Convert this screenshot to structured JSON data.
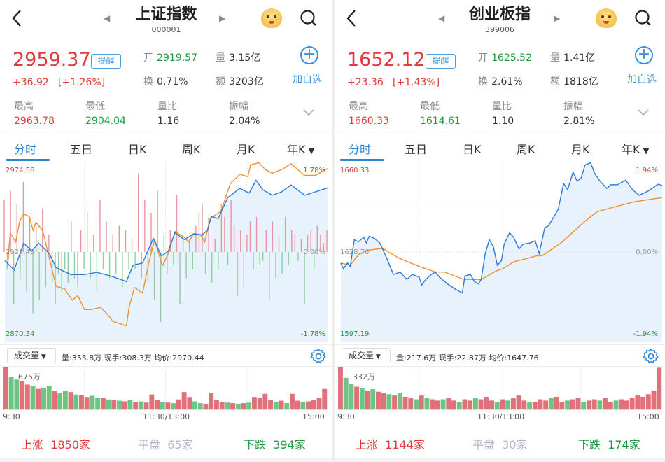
{
  "colors": {
    "up": "#e23a3a",
    "down": "#1e9a3c",
    "accent": "#2a86d8",
    "price_line": "#2f7ad6",
    "avg_line": "#f0902e",
    "fill": "#e8f2fc",
    "flat": "#b0b8c8"
  },
  "icons": {
    "back": "chevron-left-icon",
    "prev": "triangle-left-icon",
    "next": "triangle-right-icon",
    "mascot": "mascot-icon",
    "search": "search-icon",
    "add": "plus-circle-icon",
    "expand": "chevron-down-icon",
    "settings": "gear-icon",
    "dropdown": "triangle-down-icon"
  },
  "tabs": [
    "分时",
    "五日",
    "日K",
    "周K",
    "月K",
    "年K"
  ],
  "panels": [
    {
      "title": "上证指数",
      "code": "000001",
      "price": "2959.37",
      "remind": "提醒",
      "change": "+36.92",
      "change_pct": "[+1.26%]",
      "open_label": "开",
      "open": "2919.57",
      "vol_label": "量",
      "vol": "3.15亿",
      "turn_label": "换",
      "turn": "0.71%",
      "amt_label": "额",
      "amt": "3203亿",
      "add_label": "加自选",
      "stats": [
        {
          "label": "最高",
          "value": "2963.78"
        },
        {
          "label": "最低",
          "value": "2904.04"
        },
        {
          "label": "量比",
          "value": "1.16"
        },
        {
          "label": "振幅",
          "value": "2.04%"
        }
      ],
      "chart": {
        "top": "2974.56",
        "mid": "2922.45",
        "bottom": "2870.34",
        "top_pct": "1.78%",
        "mid_pct": "0.00%",
        "bottom_pct": "-1.78%"
      },
      "indicator": "成交量",
      "info": "量:355.8万  现手:308.3万  均价:2970.44",
      "vol_max": "675万",
      "times": [
        "9:30",
        "11:30/13:00",
        "15:00"
      ],
      "up": "上涨",
      "up_count": "1850家",
      "flat": "平盘",
      "flat_count": "65家",
      "down": "下跌",
      "down_count": "394家"
    },
    {
      "title": "创业板指",
      "code": "399006",
      "price": "1652.12",
      "remind": "提醒",
      "change": "+23.36",
      "change_pct": "[+1.43%]",
      "open_label": "开",
      "open": "1625.52",
      "vol_label": "量",
      "vol": "1.41亿",
      "turn_label": "换",
      "turn": "2.61%",
      "amt_label": "额",
      "amt": "1818亿",
      "add_label": "加自选",
      "stats": [
        {
          "label": "最高",
          "value": "1660.33"
        },
        {
          "label": "最低",
          "value": "1614.61"
        },
        {
          "label": "量比",
          "value": "1.10"
        },
        {
          "label": "振幅",
          "value": "2.81%"
        }
      ],
      "chart": {
        "top": "1660.33",
        "mid": "1628.76",
        "bottom": "1597.19",
        "top_pct": "1.94%",
        "mid_pct": "0.00%",
        "bottom_pct": "-1.94%"
      },
      "indicator": "成交量",
      "info": "量:217.6万  现手:22.87万  均价:1647.76",
      "vol_max": "332万",
      "times": [
        "9:30",
        "11:30/13:00",
        "15:00"
      ],
      "up": "上涨",
      "up_count": "1144家",
      "flat": "平盘",
      "flat_count": "30家",
      "down": "下跌",
      "down_count": "174家"
    }
  ],
  "chart_data": [
    {
      "type": "line",
      "name": "上证指数 分时",
      "ylim": [
        2870.34,
        2974.56
      ],
      "base": 2922.45,
      "x_unit": "minutes since 9:30 (trading)",
      "xlim": [
        0,
        240
      ],
      "price": [
        [
          1,
          2917.5
        ],
        [
          8,
          2912.1
        ],
        [
          15,
          2927.6
        ],
        [
          21,
          2922.9
        ],
        [
          26,
          2927.6
        ],
        [
          34,
          2921.5
        ],
        [
          39,
          2913.4
        ],
        [
          50,
          2909.4
        ],
        [
          60,
          2909.4
        ],
        [
          69,
          2910.7
        ],
        [
          79,
          2908.7
        ],
        [
          91,
          2905.4
        ],
        [
          96,
          2914.8
        ],
        [
          103,
          2916.1
        ],
        [
          111,
          2930.2
        ],
        [
          117,
          2920.2
        ],
        [
          122,
          2922.9
        ],
        [
          127,
          2933.6
        ],
        [
          134,
          2929.6
        ],
        [
          141,
          2933.0
        ],
        [
          147,
          2932.3
        ],
        [
          151,
          2935.0
        ],
        [
          154,
          2943.1
        ],
        [
          159,
          2941.7
        ],
        [
          166,
          2953.8
        ],
        [
          175,
          2959.2
        ],
        [
          182,
          2956.5
        ],
        [
          187,
          2963.9
        ],
        [
          192,
          2958.5
        ],
        [
          199,
          2955.2
        ],
        [
          206,
          2957.2
        ],
        [
          213,
          2961.2
        ],
        [
          223,
          2955.2
        ],
        [
          231,
          2957.2
        ],
        [
          240,
          2959.5
        ]
      ],
      "average": [
        [
          3,
          2913.4
        ],
        [
          5,
          2933.6
        ],
        [
          9,
          2928.2
        ],
        [
          12,
          2940.4
        ],
        [
          15,
          2944.4
        ],
        [
          19,
          2943.0
        ],
        [
          22,
          2935.0
        ],
        [
          24,
          2939.7
        ],
        [
          29,
          2935.0
        ],
        [
          34,
          2918.8
        ],
        [
          39,
          2902.6
        ],
        [
          45,
          2901.3
        ],
        [
          51,
          2894.6
        ],
        [
          55,
          2897.3
        ],
        [
          60,
          2889.2
        ],
        [
          65,
          2889.2
        ],
        [
          72,
          2890.5
        ],
        [
          77,
          2886.5
        ],
        [
          81,
          2882.5
        ],
        [
          86,
          2881.1
        ],
        [
          91,
          2879.8
        ],
        [
          93,
          2890.5
        ],
        [
          97,
          2902.0
        ],
        [
          103,
          2898.6
        ],
        [
          108,
          2917.5
        ],
        [
          112,
          2929.6
        ],
        [
          117,
          2916.1
        ],
        [
          118,
          2914.8
        ],
        [
          122,
          2921.5
        ],
        [
          127,
          2934.3
        ],
        [
          134,
          2930.9
        ],
        [
          137,
          2928.2
        ],
        [
          141,
          2933.0
        ],
        [
          146,
          2932.3
        ],
        [
          149,
          2928.2
        ],
        [
          153,
          2941.7
        ],
        [
          158,
          2944.4
        ],
        [
          161,
          2945.8
        ],
        [
          168,
          2961.9
        ],
        [
          175,
          2967.3
        ],
        [
          181,
          2966.0
        ],
        [
          183,
          2972.7
        ],
        [
          189,
          2974.0
        ],
        [
          194,
          2970.0
        ],
        [
          199,
          2968.0
        ],
        [
          206,
          2970.0
        ],
        [
          213,
          2973.4
        ],
        [
          223,
          2966.7
        ],
        [
          231,
          2966.7
        ],
        [
          240,
          2970.7
        ]
      ],
      "breadth": [
        60,
        -20,
        70,
        -60,
        55,
        -30,
        80,
        -45,
        40,
        -70,
        30,
        -55,
        50,
        -40,
        20,
        -35,
        -60,
        -25,
        -45,
        -20,
        -35,
        35,
        -30,
        -40,
        25,
        -20,
        45,
        -30,
        20,
        -45,
        60,
        -20,
        35,
        -30,
        20,
        -25,
        30,
        -40,
        25,
        -20,
        15,
        -20,
        90,
        -30,
        60,
        -35,
        45,
        -55,
        70,
        -80,
        20,
        -25,
        25,
        -15,
        65,
        -60,
        20,
        -30,
        15,
        -20,
        30,
        45,
        55,
        -25,
        40,
        -35,
        15,
        -20,
        55,
        40,
        -15,
        60,
        30,
        -50,
        25,
        -40,
        20,
        35,
        -20,
        40,
        -15,
        -10,
        25,
        -55,
        35,
        -30,
        20,
        -25,
        40,
        -15,
        25,
        20,
        -10,
        15,
        -60,
        20,
        25,
        -20,
        30,
        20,
        10,
        25
      ],
      "volume": [
        675,
        -520,
        -480,
        450,
        400,
        -380,
        330,
        -350,
        -380,
        300,
        -260,
        -300,
        280,
        -240,
        230,
        200,
        -220,
        -180,
        190,
        -160,
        150,
        -140,
        130,
        -150,
        120,
        -130,
        110,
        240,
        150,
        -120,
        110,
        -100,
        160,
        280,
        200,
        -130,
        -100,
        90,
        270,
        150,
        120,
        -110,
        100,
        -90,
        100,
        -110,
        200,
        180,
        250,
        150,
        -120,
        140,
        -100,
        250,
        140,
        -120,
        130,
        150,
        190,
        330
      ]
    },
    {
      "type": "line",
      "name": "创业板指 分时",
      "ylim": [
        1597.19,
        1660.33
      ],
      "base": 1628.76,
      "x_unit": "minutes since 9:30 (trading)",
      "xlim": [
        0,
        240
      ],
      "price": [
        [
          2,
          1624.9
        ],
        [
          4,
          1622.9
        ],
        [
          7,
          1624.9
        ],
        [
          9,
          1623.7
        ],
        [
          12,
          1633.1
        ],
        [
          15,
          1632.3
        ],
        [
          19,
          1633.9
        ],
        [
          21,
          1631.9
        ],
        [
          23,
          1634.3
        ],
        [
          27,
          1633.5
        ],
        [
          31,
          1631.9
        ],
        [
          36,
          1626.6
        ],
        [
          41,
          1620.9
        ],
        [
          46,
          1621.7
        ],
        [
          51,
          1619.2
        ],
        [
          55,
          1620.9
        ],
        [
          60,
          1620.0
        ],
        [
          62,
          1617.2
        ],
        [
          65,
          1619.2
        ],
        [
          69,
          1620.9
        ],
        [
          72,
          1621.7
        ],
        [
          75,
          1620.0
        ],
        [
          81,
          1617.6
        ],
        [
          86,
          1616.0
        ],
        [
          92,
          1614.4
        ],
        [
          94,
          1620.4
        ],
        [
          98,
          1620.9
        ],
        [
          101,
          1618.4
        ],
        [
          104,
          1617.6
        ],
        [
          106,
          1619.2
        ],
        [
          109,
          1628.2
        ],
        [
          112,
          1633.1
        ],
        [
          115,
          1630.6
        ],
        [
          118,
          1624.1
        ],
        [
          121,
          1625.7
        ],
        [
          123,
          1631.5
        ],
        [
          127,
          1635.5
        ],
        [
          130,
          1633.9
        ],
        [
          134,
          1629.8
        ],
        [
          137,
          1631.5
        ],
        [
          142,
          1631.9
        ],
        [
          146,
          1632.7
        ],
        [
          149,
          1628.2
        ],
        [
          153,
          1637.2
        ],
        [
          156,
          1638.0
        ],
        [
          163,
          1643.7
        ],
        [
          167,
          1652.7
        ],
        [
          170,
          1650.6
        ],
        [
          174,
          1656.7
        ],
        [
          177,
          1653.5
        ],
        [
          180,
          1654.7
        ],
        [
          183,
          1659.2
        ],
        [
          187,
          1660.0
        ],
        [
          190,
          1656.3
        ],
        [
          194,
          1653.5
        ],
        [
          199,
          1651.0
        ],
        [
          202,
          1652.3
        ],
        [
          207,
          1652.3
        ],
        [
          213,
          1653.9
        ],
        [
          218,
          1650.6
        ],
        [
          223,
          1648.6
        ],
        [
          230,
          1650.2
        ],
        [
          237,
          1652.5
        ],
        [
          240,
          1652.0
        ]
      ],
      "average": [
        [
          2,
          1624.9
        ],
        [
          9,
          1624.1
        ],
        [
          15,
          1627.8
        ],
        [
          22,
          1629.4
        ],
        [
          33,
          1630.0
        ],
        [
          45,
          1626.6
        ],
        [
          60,
          1623.7
        ],
        [
          72,
          1621.8
        ],
        [
          79,
          1621.7
        ],
        [
          93,
          1619.2
        ],
        [
          106,
          1619.1
        ],
        [
          117,
          1622.1
        ],
        [
          122,
          1622.9
        ],
        [
          130,
          1625.3
        ],
        [
          147,
          1627.4
        ],
        [
          151,
          1627.4
        ],
        [
          165,
          1631.9
        ],
        [
          182,
          1639.2
        ],
        [
          192,
          1642.9
        ],
        [
          219,
          1646.3
        ],
        [
          240,
          1647.8
        ]
      ],
      "volume": [
        332,
        -250,
        -200,
        180,
        -170,
        150,
        -160,
        140,
        130,
        -120,
        110,
        -130,
        100,
        90,
        -80,
        110,
        -90,
        80,
        70,
        -80,
        90,
        70,
        -60,
        80,
        70,
        -90,
        80,
        100,
        70,
        -60,
        80,
        -70,
        90,
        110,
        70,
        -60,
        60,
        80,
        70,
        -90,
        100,
        60,
        -70,
        80,
        90,
        -60,
        70,
        80,
        -70,
        90,
        60,
        -70,
        80,
        70,
        90,
        110,
        100,
        120,
        150,
        330
      ]
    }
  ]
}
